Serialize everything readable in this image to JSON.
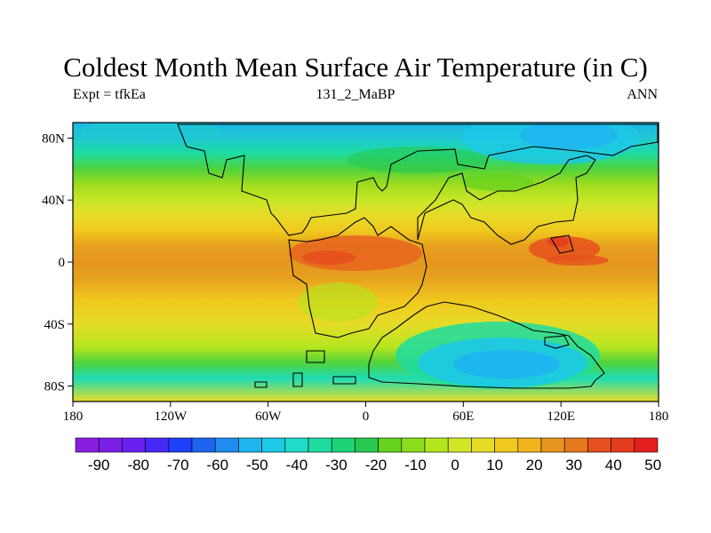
{
  "title": "Coldest Month Mean Surface Air Temperature (in C)",
  "left_label": "Expt = tfkEa",
  "center_label": "131_2_MaBP",
  "right_label": "ANN",
  "map": {
    "lon_ticks": [
      "180",
      "120W",
      "60W",
      "0",
      "60E",
      "120E",
      "180"
    ],
    "lat_ticks": [
      "80N",
      "40N",
      "0",
      "40S",
      "80S"
    ],
    "lon_range": [
      -180,
      180
    ],
    "lat_range": [
      -90,
      90
    ]
  },
  "colorbar": {
    "labels": [
      "-90",
      "-80",
      "-70",
      "-60",
      "-50",
      "-40",
      "-30",
      "-20",
      "-10",
      "0",
      "10",
      "20",
      "30",
      "40",
      "50"
    ],
    "colors": [
      "#8a1ee0",
      "#7a1ee8",
      "#6a20f0",
      "#4628f8",
      "#1e40f8",
      "#1e64f0",
      "#1e8cf0",
      "#1eb4f0",
      "#1ec8e6",
      "#1edcc8",
      "#1edca0",
      "#1ed278",
      "#28c850",
      "#64d21e",
      "#8cdc1e",
      "#b4e61e",
      "#d2e628",
      "#e6dc28",
      "#f0c81e",
      "#f0b41e",
      "#e6961e",
      "#e6781e",
      "#e6501e",
      "#e63c1e",
      "#e61e1e"
    ]
  },
  "field_bands": [
    {
      "lat": 90,
      "color": "#1eb4e6"
    },
    {
      "lat": 80,
      "color": "#1ec8d2"
    },
    {
      "lat": 70,
      "color": "#1edca0"
    },
    {
      "lat": 60,
      "color": "#50d23c"
    },
    {
      "lat": 50,
      "color": "#a0dc1e"
    },
    {
      "lat": 40,
      "color": "#c8e628"
    },
    {
      "lat": 30,
      "color": "#e6dc28"
    },
    {
      "lat": 20,
      "color": "#f0c81e"
    },
    {
      "lat": 10,
      "color": "#e6a01e"
    },
    {
      "lat": 0,
      "color": "#e6961e"
    },
    {
      "lat": -10,
      "color": "#e6a01e"
    },
    {
      "lat": -25,
      "color": "#f0c81e"
    },
    {
      "lat": -40,
      "color": "#e6dc28"
    },
    {
      "lat": -55,
      "color": "#b4e61e"
    },
    {
      "lat": -65,
      "color": "#50d23c"
    },
    {
      "lat": -75,
      "color": "#1edcb4"
    },
    {
      "lat": -90,
      "color": "#e6dc28"
    }
  ]
}
